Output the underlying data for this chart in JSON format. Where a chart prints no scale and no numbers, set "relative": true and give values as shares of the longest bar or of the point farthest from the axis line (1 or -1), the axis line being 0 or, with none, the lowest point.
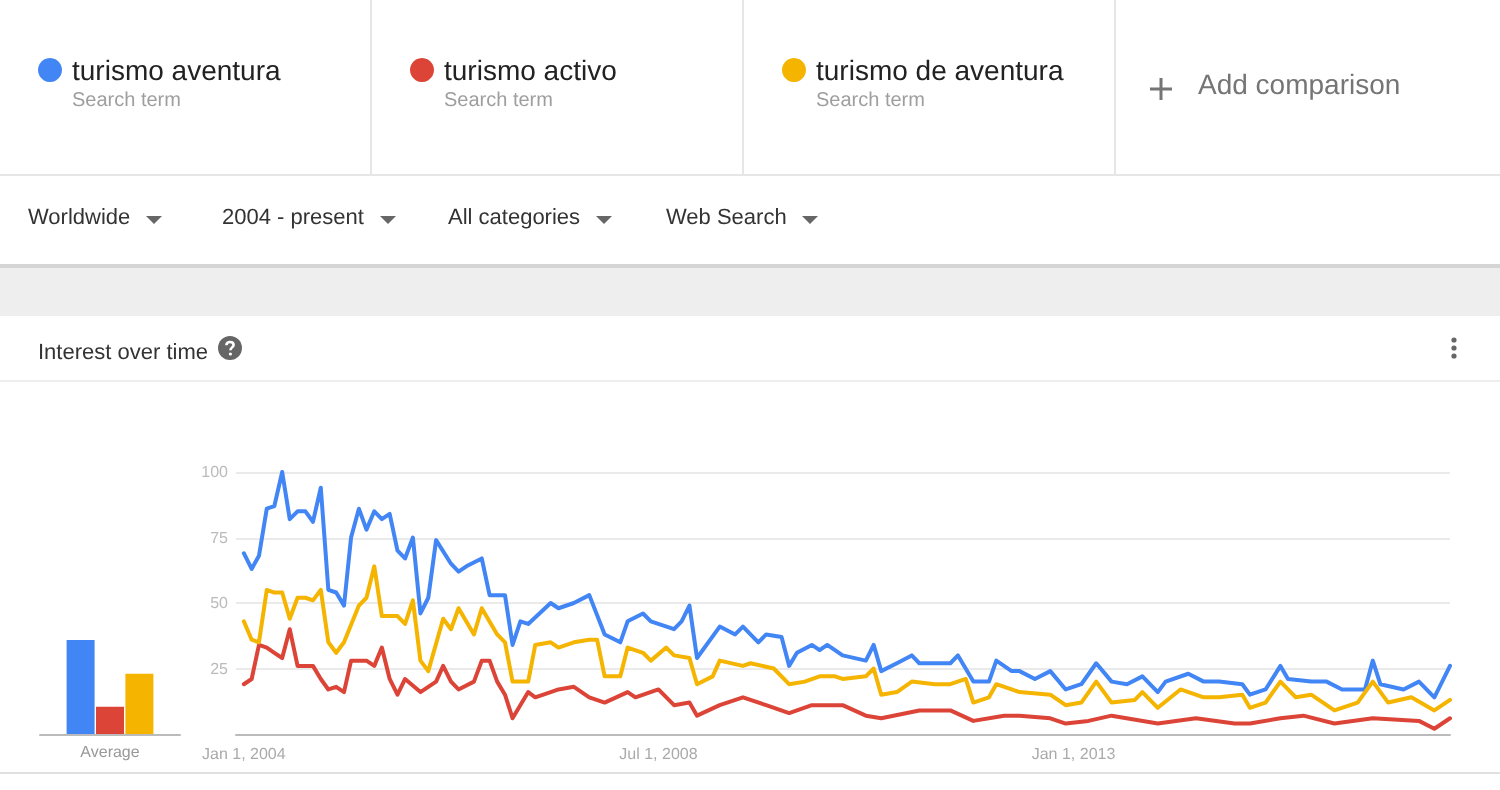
{
  "chart_data": [
    {
      "type": "bar",
      "relative": true,
      "categories": [
        "Average"
      ],
      "series": [
        {
          "color": "#4285f4",
          "values": [
            1
          ]
        },
        {
          "color": "#db4437",
          "values": [
            0.29
          ]
        },
        {
          "color": "#f4b400",
          "values": [
            0.64
          ]
        }
      ]
    },
    {
      "type": "line",
      "title": "Interest over time",
      "annotations": [
        "Search term",
        "Search term",
        "Search term",
        "Add comparison",
        "Worldwide",
        "2004 - present",
        "All categories",
        "Web Search"
      ],
      "legend": "top left",
      "marker": "none",
      "line_style": "solid",
      "grid": "y",
      "ylim": [
        0,
        100
      ],
      "yticks": [
        25,
        50,
        75,
        100
      ],
      "xlim": [
        "2003-12",
        "2017-02"
      ],
      "xticks": [
        {
          "value": "2004-01-01",
          "label": "Jan 1, 2004"
        },
        {
          "value": "2008-07-01",
          "label": "Jul 1, 2008"
        },
        {
          "value": "2013-01-01",
          "label": "Jan 1, 2013"
        }
      ],
      "series": [
        {
          "name": "turismo aventura",
          "color": "#4285f4",
          "x": [
            "2004-01",
            "2004-02",
            "2004-03",
            "2004-04",
            "2004-05",
            "2004-06",
            "2004-07",
            "2004-08",
            "2004-09",
            "2004-10",
            "2004-11",
            "2004-12",
            "2005-01",
            "2005-02",
            "2005-03",
            "2005-04",
            "2005-05",
            "2005-06",
            "2005-07",
            "2005-08",
            "2005-09",
            "2005-10",
            "2005-11",
            "2005-12",
            "2006-01",
            "2006-02",
            "2006-04",
            "2006-05",
            "2006-06",
            "2006-08",
            "2006-09",
            "2006-11",
            "2006-12",
            "2007-01",
            "2007-02",
            "2007-05",
            "2007-06",
            "2007-08",
            "2007-10",
            "2007-12",
            "2008-02",
            "2008-03",
            "2008-05",
            "2008-06",
            "2008-09",
            "2008-10",
            "2008-11",
            "2008-12",
            "2009-03",
            "2009-05",
            "2009-06",
            "2009-08",
            "2009-09",
            "2009-11",
            "2009-12",
            "2010-01",
            "2010-03",
            "2010-04",
            "2010-05",
            "2010-07",
            "2010-10",
            "2010-11",
            "2010-12",
            "2011-02",
            "2011-04",
            "2011-05",
            "2011-09",
            "2011-10",
            "2011-12",
            "2012-02",
            "2012-03",
            "2012-05",
            "2012-06",
            "2012-08",
            "2012-10",
            "2012-12",
            "2013-02",
            "2013-04",
            "2013-06",
            "2013-08",
            "2013-10",
            "2013-12",
            "2014-01",
            "2014-04",
            "2014-06",
            "2014-08",
            "2014-11",
            "2014-12",
            "2015-02",
            "2015-04",
            "2015-05",
            "2015-08",
            "2015-10",
            "2015-12",
            "2016-02",
            "2016-03",
            "2016-04",
            "2016-05",
            "2016-08",
            "2016-10",
            "2016-12",
            "2017-02"
          ],
          "values": [
            69,
            63,
            68,
            86,
            87,
            100,
            82,
            85,
            85,
            81,
            94,
            55,
            54,
            49,
            75,
            86,
            78,
            85,
            82,
            84,
            70,
            67,
            75,
            46,
            52,
            74,
            65,
            62,
            64,
            67,
            53,
            53,
            34,
            43,
            42,
            50,
            48,
            50,
            53,
            38,
            35,
            43,
            46,
            43,
            40,
            43,
            49,
            29,
            41,
            38,
            41,
            35,
            38,
            37,
            26,
            31,
            34,
            32,
            34,
            30,
            28,
            34,
            24,
            27,
            30,
            27,
            27,
            30,
            20,
            20,
            28,
            24,
            24,
            21,
            24,
            17,
            19,
            27,
            20,
            19,
            22,
            16,
            20,
            23,
            20,
            20,
            19,
            15,
            17,
            26,
            21,
            20,
            20,
            17,
            17,
            17,
            28,
            19,
            17,
            20,
            14,
            26
          ]
        },
        {
          "name": "turismo activo",
          "color": "#db4437",
          "x": [
            "2004-01",
            "2004-02",
            "2004-03",
            "2004-04",
            "2004-05",
            "2004-06",
            "2004-07",
            "2004-08",
            "2004-10",
            "2004-11",
            "2004-12",
            "2005-01",
            "2005-02",
            "2005-03",
            "2005-05",
            "2005-06",
            "2005-07",
            "2005-08",
            "2005-09",
            "2005-10",
            "2005-12",
            "2006-02",
            "2006-03",
            "2006-04",
            "2006-05",
            "2006-07",
            "2006-08",
            "2006-09",
            "2006-10",
            "2006-11",
            "2006-12",
            "2007-02",
            "2007-03",
            "2007-05",
            "2007-06",
            "2007-08",
            "2007-10",
            "2007-12",
            "2008-03",
            "2008-04",
            "2008-07",
            "2008-09",
            "2008-11",
            "2008-12",
            "2009-03",
            "2009-06",
            "2009-09",
            "2009-12",
            "2010-03",
            "2010-07",
            "2010-10",
            "2010-12",
            "2011-05",
            "2011-09",
            "2011-12",
            "2012-04",
            "2012-06",
            "2012-10",
            "2012-12",
            "2013-03",
            "2013-06",
            "2013-12",
            "2014-05",
            "2014-10",
            "2014-12",
            "2015-04",
            "2015-07",
            "2015-11",
            "2016-04",
            "2016-10",
            "2016-12",
            "2017-02"
          ],
          "values": [
            19,
            21,
            34,
            33,
            31,
            29,
            40,
            26,
            26,
            21,
            17,
            18,
            16,
            28,
            28,
            26,
            33,
            21,
            15,
            21,
            16,
            20,
            26,
            20,
            17,
            20,
            28,
            28,
            20,
            15,
            6,
            16,
            14,
            16,
            17,
            18,
            14,
            12,
            16,
            14,
            17,
            11,
            12,
            7,
            11,
            14,
            11,
            8,
            11,
            11,
            7,
            6,
            9,
            9,
            5,
            7,
            7,
            6,
            4,
            5,
            7,
            4,
            6,
            4,
            4,
            6,
            7,
            4,
            6,
            5,
            2,
            6
          ]
        },
        {
          "name": "turismo de aventura",
          "color": "#f4b400",
          "x": [
            "2004-01",
            "2004-02",
            "2004-03",
            "2004-04",
            "2004-05",
            "2004-06",
            "2004-07",
            "2004-08",
            "2004-09",
            "2004-10",
            "2004-11",
            "2004-12",
            "2005-01",
            "2005-02",
            "2005-04",
            "2005-05",
            "2005-06",
            "2005-07",
            "2005-09",
            "2005-10",
            "2005-11",
            "2005-12",
            "2006-01",
            "2006-03",
            "2006-04",
            "2006-05",
            "2006-07",
            "2006-08",
            "2006-10",
            "2006-11",
            "2006-12",
            "2007-02",
            "2007-03",
            "2007-05",
            "2007-06",
            "2007-08",
            "2007-10",
            "2007-11",
            "2007-12",
            "2008-02",
            "2008-03",
            "2008-05",
            "2008-06",
            "2008-08",
            "2008-09",
            "2008-11",
            "2008-12",
            "2009-02",
            "2009-03",
            "2009-06",
            "2009-07",
            "2009-10",
            "2009-12",
            "2010-02",
            "2010-04",
            "2010-06",
            "2010-07",
            "2010-10",
            "2010-11",
            "2010-12",
            "2011-02",
            "2011-04",
            "2011-07",
            "2011-09",
            "2011-11",
            "2011-12",
            "2012-02",
            "2012-03",
            "2012-05",
            "2012-06",
            "2012-10",
            "2012-12",
            "2013-02",
            "2013-04",
            "2013-06",
            "2013-09",
            "2013-10",
            "2013-12",
            "2014-03",
            "2014-06",
            "2014-08",
            "2014-11",
            "2014-12",
            "2015-02",
            "2015-04",
            "2015-06",
            "2015-08",
            "2015-11",
            "2016-02",
            "2016-04",
            "2016-06",
            "2016-09",
            "2016-12",
            "2017-02"
          ],
          "values": [
            43,
            36,
            35,
            55,
            54,
            54,
            44,
            52,
            52,
            51,
            55,
            35,
            31,
            35,
            49,
            52,
            64,
            45,
            45,
            42,
            51,
            28,
            24,
            44,
            40,
            48,
            38,
            48,
            38,
            35,
            20,
            20,
            34,
            35,
            33,
            35,
            36,
            36,
            22,
            22,
            33,
            31,
            28,
            33,
            30,
            29,
            19,
            22,
            28,
            26,
            27,
            25,
            19,
            20,
            22,
            22,
            21,
            22,
            25,
            15,
            16,
            20,
            19,
            19,
            21,
            12,
            14,
            19,
            17,
            16,
            15,
            11,
            12,
            20,
            12,
            13,
            16,
            10,
            17,
            14,
            14,
            15,
            10,
            12,
            20,
            14,
            15,
            9,
            12,
            20,
            12,
            14,
            9,
            13
          ]
        }
      ]
    }
  ]
}
